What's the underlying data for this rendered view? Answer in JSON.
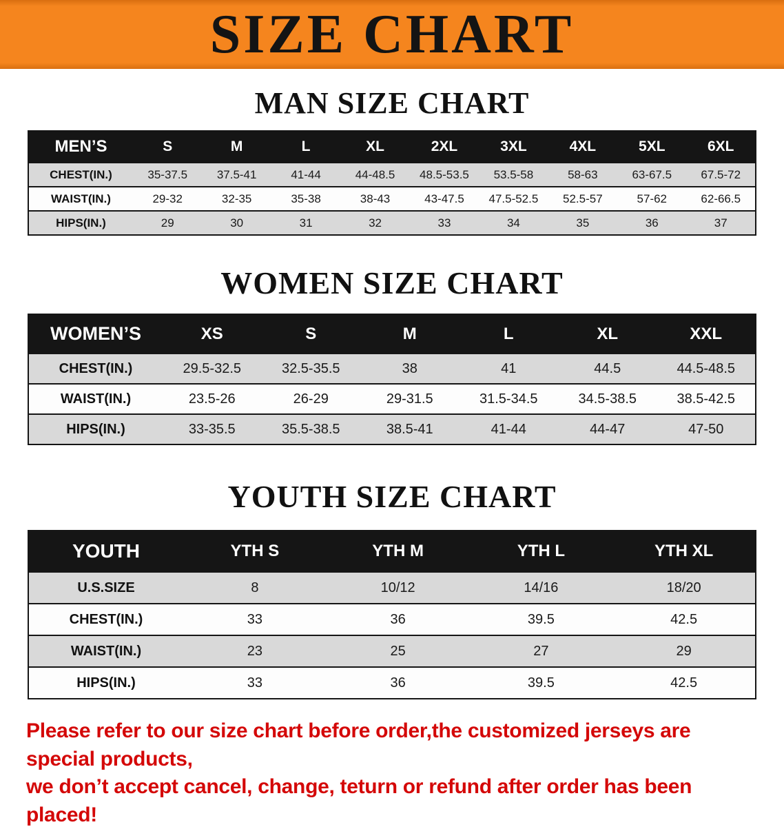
{
  "banner": {
    "title": "SIZE CHART",
    "bg_color": "#f5851e",
    "text_color": "#141414"
  },
  "colors": {
    "table_header_bg": "#151515",
    "table_header_text": "#ffffff",
    "row_stripe": "#d9d9d9",
    "footer_text": "#d40808"
  },
  "sections": [
    {
      "heading": "MAN SIZE CHART",
      "header": [
        "MEN’S",
        "S",
        "M",
        "L",
        "XL",
        "2XL",
        "3XL",
        "4XL",
        "5XL",
        "6XL"
      ],
      "rows": [
        {
          "label": "CHEST(IN.)",
          "values": [
            "35-37.5",
            "37.5-41",
            "41-44",
            "44-48.5",
            "48.5-53.5",
            "53.5-58",
            "58-63",
            "63-67.5",
            "67.5-72"
          ]
        },
        {
          "label": "WAIST(IN.)",
          "values": [
            "29-32",
            "32-35",
            "35-38",
            "38-43",
            "43-47.5",
            "47.5-52.5",
            "52.5-57",
            "57-62",
            "62-66.5"
          ]
        },
        {
          "label": "HIPS(IN.)",
          "values": [
            "29",
            "30",
            "31",
            "32",
            "33",
            "34",
            "35",
            "36",
            "37"
          ]
        }
      ]
    },
    {
      "heading": "WOMEN SIZE CHART",
      "header": [
        "WOMEN’S",
        "XS",
        "S",
        "M",
        "L",
        "XL",
        "XXL"
      ],
      "rows": [
        {
          "label": "CHEST(IN.)",
          "values": [
            "29.5-32.5",
            "32.5-35.5",
            "38",
            "41",
            "44.5",
            "44.5-48.5"
          ]
        },
        {
          "label": "WAIST(IN.)",
          "values": [
            "23.5-26",
            "26-29",
            "29-31.5",
            "31.5-34.5",
            "34.5-38.5",
            "38.5-42.5"
          ]
        },
        {
          "label": "HIPS(IN.)",
          "values": [
            "33-35.5",
            "35.5-38.5",
            "38.5-41",
            "41-44",
            "44-47",
            "47-50"
          ]
        }
      ]
    },
    {
      "heading": "YOUTH SIZE CHART",
      "header": [
        "YOUTH",
        "YTH S",
        "YTH M",
        "YTH L",
        "YTH XL"
      ],
      "rows": [
        {
          "label": "U.S.SIZE",
          "values": [
            "8",
            "10/12",
            "14/16",
            "18/20"
          ]
        },
        {
          "label": "CHEST(IN.)",
          "values": [
            "33",
            "36",
            "39.5",
            "42.5"
          ]
        },
        {
          "label": "WAIST(IN.)",
          "values": [
            "23",
            "25",
            "27",
            "29"
          ]
        },
        {
          "label": "HIPS(IN.)",
          "values": [
            "33",
            "36",
            "39.5",
            "42.5"
          ]
        }
      ]
    }
  ],
  "footer": {
    "lines": [
      "Please refer to our size chart before order,the customized jerseys are special products,",
      "we don’t accept cancel, change, teturn or refund after order has been placed!"
    ]
  }
}
